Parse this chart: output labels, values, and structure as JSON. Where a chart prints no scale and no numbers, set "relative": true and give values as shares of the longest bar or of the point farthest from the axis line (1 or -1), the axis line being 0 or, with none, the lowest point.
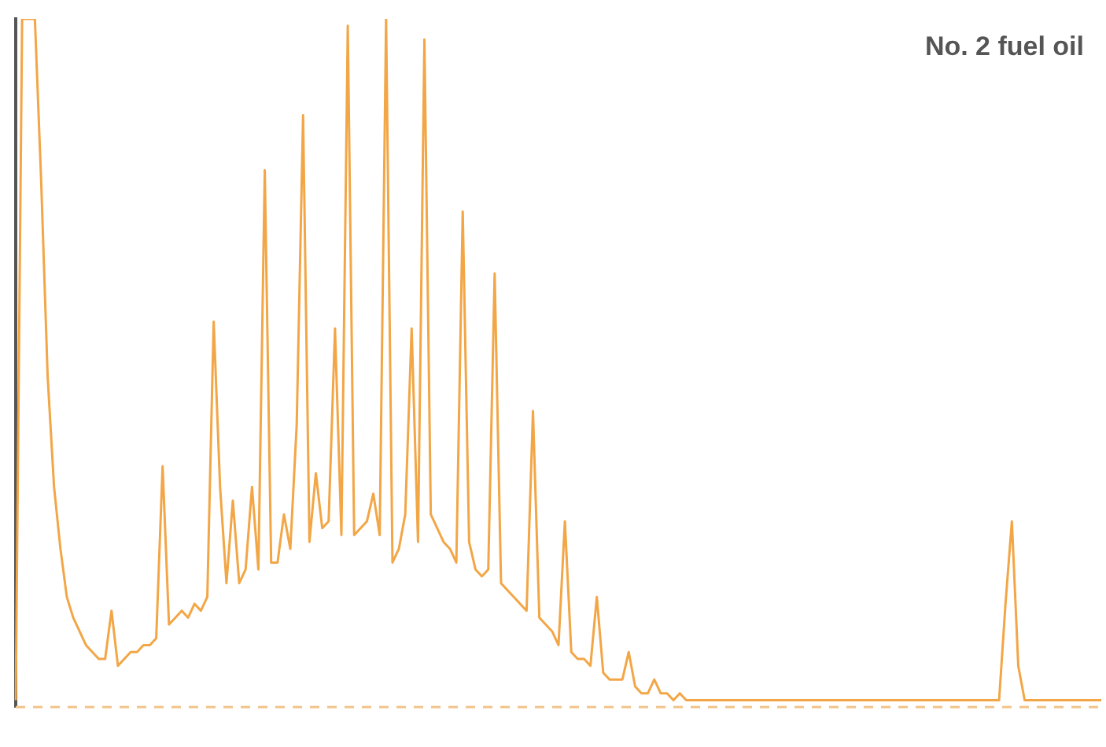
{
  "chart_data": {
    "type": "line",
    "title": "No. 2 fuel oil",
    "relative": true,
    "grid": false,
    "legend": false,
    "marker": "none",
    "line_style": "solid",
    "categories": [
      null,
      null,
      null,
      null,
      null,
      null,
      null,
      null,
      null,
      null,
      null,
      null,
      null,
      null,
      null,
      null,
      null,
      null,
      null,
      null,
      null,
      null,
      null,
      null,
      null,
      null,
      null,
      null,
      null,
      null,
      null,
      null,
      null,
      null,
      null,
      null,
      null,
      null,
      null,
      null,
      null,
      null,
      null,
      null,
      null,
      null,
      null,
      null,
      null,
      null,
      null,
      null,
      null,
      null,
      null,
      null,
      null,
      null,
      null,
      null,
      null,
      null,
      null,
      null,
      null,
      null,
      null,
      null,
      null,
      null,
      null,
      null,
      null,
      null,
      null,
      null,
      null,
      null,
      null,
      null,
      null,
      null,
      null,
      null,
      null,
      null,
      null,
      null,
      null,
      null,
      null,
      null,
      null,
      null,
      null,
      null,
      null,
      null,
      null,
      null,
      null,
      null,
      null,
      null,
      null,
      null,
      null,
      null,
      null,
      null,
      null,
      null,
      null,
      null,
      null,
      null,
      null,
      null,
      null,
      null,
      null,
      null,
      null,
      null,
      null,
      null,
      null,
      null,
      null,
      null,
      null,
      null,
      null,
      null,
      null,
      null,
      null,
      null,
      null,
      null,
      null,
      null,
      null,
      null,
      null,
      null,
      null,
      null,
      null,
      null,
      null,
      null,
      null,
      null,
      null,
      null,
      null,
      null,
      null,
      null,
      null,
      null,
      null,
      null,
      null,
      null,
      null,
      null,
      null,
      null,
      null
    ],
    "series": [
      {
        "color": "#f2a646",
        "values": [
          0.01,
          1,
          1,
          1,
          0.76,
          0.48,
          0.32,
          0.23,
          0.16,
          0.13,
          0.11,
          0.09,
          0.08,
          0.07,
          0.07,
          0.14,
          0.06,
          0.07,
          0.08,
          0.08,
          0.09,
          0.09,
          0.1,
          0.35,
          0.12,
          0.13,
          0.14,
          0.13,
          0.15,
          0.14,
          0.16,
          0.56,
          0.32,
          0.18,
          0.3,
          0.18,
          0.2,
          0.32,
          0.2,
          0.78,
          0.21,
          0.21,
          0.28,
          0.23,
          0.41,
          0.86,
          0.24,
          0.34,
          0.26,
          0.27,
          0.55,
          0.25,
          0.99,
          0.25,
          0.26,
          0.27,
          0.31,
          0.25,
          1,
          0.21,
          0.23,
          0.28,
          0.55,
          0.24,
          0.97,
          0.28,
          0.26,
          0.24,
          0.23,
          0.21,
          0.72,
          0.24,
          0.2,
          0.19,
          0.2,
          0.63,
          0.18,
          0.17,
          0.16,
          0.15,
          0.14,
          0.43,
          0.13,
          0.12,
          0.11,
          0.09,
          0.27,
          0.08,
          0.07,
          0.07,
          0.06,
          0.16,
          0.05,
          0.04,
          0.04,
          0.04,
          0.08,
          0.03,
          0.02,
          0.02,
          0.04,
          0.02,
          0.02,
          0.01,
          0.02,
          0.01,
          0.01,
          0.01,
          0.01,
          0.01,
          0.01,
          0.01,
          0.01,
          0.01,
          0.01,
          0.01,
          0.01,
          0.01,
          0.01,
          0.01,
          0.01,
          0.01,
          0.01,
          0.01,
          0.01,
          0.01,
          0.01,
          0.01,
          0.01,
          0.01,
          0.01,
          0.01,
          0.01,
          0.01,
          0.01,
          0.01,
          0.01,
          0.01,
          0.01,
          0.01,
          0.01,
          0.01,
          0.01,
          0.01,
          0.01,
          0.01,
          0.01,
          0.01,
          0.01,
          0.01,
          0.01,
          0.01,
          0.01,
          0.01,
          0.01,
          0.15,
          0.27,
          0.06,
          0.01,
          0.01,
          0.01,
          0.01,
          0.01,
          0.01,
          0.01,
          0.01,
          0.01,
          0.01,
          0.01,
          0.01,
          0.01
        ]
      }
    ],
    "ref_lines": [
      {
        "axis": "y",
        "value": 0,
        "color": "#f2c48a",
        "line_style": "dashed"
      }
    ]
  }
}
